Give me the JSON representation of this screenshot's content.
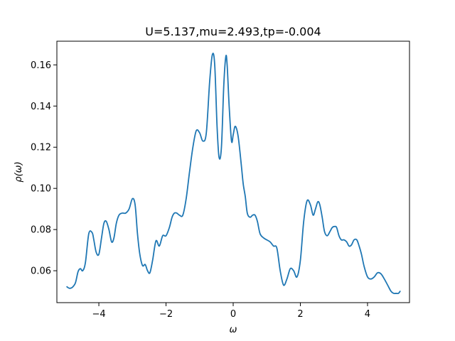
{
  "chart_data": {
    "type": "line",
    "title": "U=5.137,mu=2.493,tp=-0.004",
    "xlabel": "ω",
    "ylabel": "ρ(ω)",
    "xlim": [
      -5.25,
      5.25
    ],
    "ylim": [
      0.0445,
      0.1715
    ],
    "xticks": [
      -4,
      -2,
      0,
      2,
      4
    ],
    "xtick_labels": [
      "−4",
      "−2",
      "0",
      "2",
      "4"
    ],
    "yticks": [
      0.06,
      0.08,
      0.1,
      0.12,
      0.14,
      0.16
    ],
    "ytick_labels": [
      "0.06",
      "0.08",
      "0.10",
      "0.12",
      "0.14",
      "0.16"
    ],
    "grid": false,
    "line_color": "#1f77b4",
    "series": [
      {
        "x": [
          -4.95,
          -4.88,
          -4.8,
          -4.7,
          -4.62,
          -4.55,
          -4.48,
          -4.4,
          -4.3,
          -4.2,
          -4.15,
          -4.08,
          -4.0,
          -3.92,
          -3.85,
          -3.78,
          -3.7,
          -3.62,
          -3.55,
          -3.48,
          -3.4,
          -3.3,
          -3.2,
          -3.1,
          -3.0,
          -2.92,
          -2.85,
          -2.78,
          -2.7,
          -2.62,
          -2.55,
          -2.48,
          -2.4,
          -2.3,
          -2.2,
          -2.1,
          -2.0,
          -1.9,
          -1.82,
          -1.75,
          -1.68,
          -1.6,
          -1.5,
          -1.4,
          -1.3,
          -1.2,
          -1.1,
          -1.0,
          -0.9,
          -0.8,
          -0.7,
          -0.62,
          -0.55,
          -0.48,
          -0.42,
          -0.35,
          -0.28,
          -0.22,
          -0.18,
          -0.12,
          -0.05,
          0.0,
          0.05,
          0.1,
          0.15,
          0.2,
          0.25,
          0.3,
          0.36,
          0.42,
          0.5,
          0.58,
          0.65,
          0.72,
          0.8,
          0.9,
          1.0,
          1.1,
          1.2,
          1.3,
          1.4,
          1.5,
          1.6,
          1.7,
          1.8,
          1.9,
          2.0,
          2.1,
          2.2,
          2.3,
          2.38,
          2.45,
          2.52,
          2.58,
          2.65,
          2.72,
          2.8,
          2.88,
          2.95,
          3.02,
          3.08,
          3.15,
          3.22,
          3.3,
          3.38,
          3.45,
          3.52,
          3.6,
          3.68,
          3.75,
          3.82,
          3.9,
          4.0,
          4.1,
          4.2,
          4.3,
          4.4,
          4.5,
          4.6,
          4.7,
          4.78,
          4.85,
          4.92,
          4.97
        ],
        "y": [
          0.0522,
          0.0515,
          0.0518,
          0.054,
          0.0595,
          0.061,
          0.06,
          0.064,
          0.078,
          0.0785,
          0.075,
          0.069,
          0.068,
          0.076,
          0.083,
          0.084,
          0.08,
          0.074,
          0.076,
          0.083,
          0.087,
          0.088,
          0.088,
          0.09,
          0.095,
          0.092,
          0.078,
          0.068,
          0.0625,
          0.063,
          0.06,
          0.059,
          0.065,
          0.0745,
          0.072,
          0.077,
          0.077,
          0.081,
          0.086,
          0.088,
          0.088,
          0.087,
          0.087,
          0.095,
          0.108,
          0.12,
          0.128,
          0.127,
          0.123,
          0.127,
          0.152,
          0.165,
          0.16,
          0.13,
          0.115,
          0.12,
          0.15,
          0.164,
          0.16,
          0.14,
          0.123,
          0.126,
          0.13,
          0.129,
          0.125,
          0.118,
          0.11,
          0.102,
          0.096,
          0.088,
          0.086,
          0.087,
          0.087,
          0.084,
          0.078,
          0.076,
          0.075,
          0.074,
          0.072,
          0.071,
          0.06,
          0.053,
          0.056,
          0.061,
          0.06,
          0.057,
          0.065,
          0.084,
          0.094,
          0.092,
          0.087,
          0.09,
          0.0935,
          0.092,
          0.086,
          0.079,
          0.077,
          0.079,
          0.081,
          0.0815,
          0.081,
          0.077,
          0.075,
          0.075,
          0.074,
          0.072,
          0.0725,
          0.075,
          0.075,
          0.072,
          0.068,
          0.062,
          0.057,
          0.056,
          0.057,
          0.059,
          0.0585,
          0.056,
          0.053,
          0.05,
          0.049,
          0.049,
          0.049,
          0.05
        ]
      }
    ]
  }
}
